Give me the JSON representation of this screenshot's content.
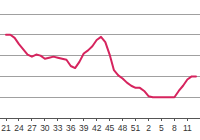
{
  "chart_data": {
    "type": "line",
    "categories": [
      "21",
      null,
      null,
      "24",
      null,
      null,
      "27",
      null,
      null,
      "30",
      null,
      null,
      "33",
      null,
      null,
      "36",
      null,
      null,
      "39",
      null,
      null,
      "42",
      null,
      null,
      "45",
      null,
      null,
      "48",
      null,
      null,
      "51",
      null,
      null,
      "2",
      null,
      null,
      "5",
      null,
      null,
      "8",
      null,
      null,
      "11",
      null,
      null
    ],
    "values": [
      4.0,
      4.0,
      3.85,
      3.55,
      3.3,
      3.05,
      2.95,
      3.05,
      3.0,
      2.85,
      2.9,
      2.95,
      2.9,
      2.85,
      2.8,
      2.5,
      2.4,
      2.7,
      3.1,
      3.25,
      3.45,
      3.75,
      3.9,
      3.65,
      3.05,
      2.3,
      2.05,
      1.9,
      1.7,
      1.55,
      1.45,
      1.45,
      1.3,
      1.05,
      1.0,
      1.0,
      1.0,
      1.0,
      1.0,
      1.0,
      1.3,
      1.55,
      1.85,
      2.0,
      2.0
    ],
    "color": "#d6245e",
    "ylim": [
      0,
      5
    ],
    "yticks": [
      0,
      1,
      2,
      3,
      4,
      5
    ],
    "grid": true,
    "tick_labels": "x"
  }
}
